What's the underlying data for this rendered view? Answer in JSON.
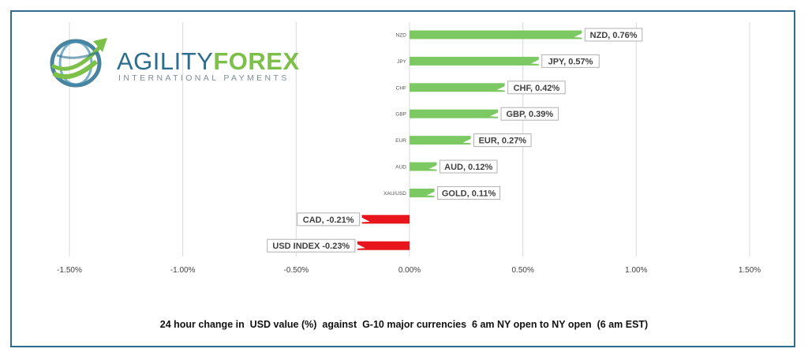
{
  "brand": {
    "name_part1": "AGILITY",
    "name_part2": "FOREX",
    "tagline": "INTERNATIONAL PAYMENTS"
  },
  "chart_data": {
    "type": "bar",
    "orientation": "horizontal",
    "title": "24 hour change in  USD value (%)  against  G-10 major currencies  6 am NY open to NY open  (6 am EST)",
    "categories": [
      "NZD",
      "JPY",
      "CHF",
      "GBP",
      "EUR",
      "AUD",
      "XAU/USD",
      "",
      ""
    ],
    "values": [
      0.76,
      0.57,
      0.42,
      0.39,
      0.27,
      0.12,
      0.11,
      -0.21,
      -0.23
    ],
    "data_labels": [
      "NZD, 0.76%",
      "JPY, 0.57%",
      "CHF, 0.42%",
      "GBP, 0.39%",
      "EUR, 0.27%",
      "AUD, 0.12%",
      "GOLD, 0.11%",
      "CAD, -0.21%",
      "USD INDEX -0.23%"
    ],
    "x_ticks": [
      -1.5,
      -1.0,
      -0.5,
      0.0,
      0.5,
      1.0,
      1.5
    ],
    "x_tick_labels": [
      "-1.50%",
      "-1.00%",
      "-0.50%",
      "0.00%",
      "0.50%",
      "1.00%",
      "1.50%"
    ],
    "xlim": [
      -1.5,
      1.5
    ],
    "grid": true,
    "positive_color": "#7cc862",
    "negative_color": "#e8161c",
    "legend": "none"
  }
}
